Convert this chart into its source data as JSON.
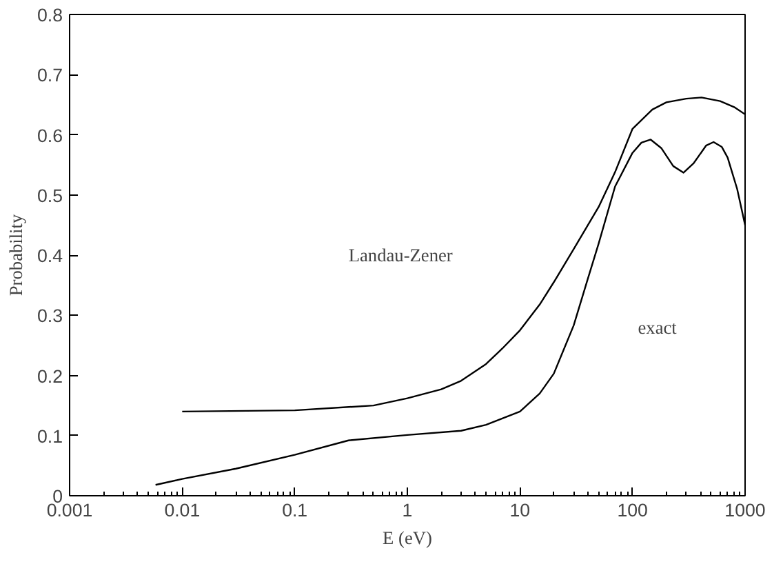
{
  "chart_data": {
    "type": "line",
    "xlabel": "E (eV)",
    "ylabel": "Probability",
    "log": "x",
    "grid": false,
    "marker": "none",
    "line_style": "solid",
    "xlim": [
      0.001,
      1000
    ],
    "xticks": [
      0.001,
      0.01,
      0.1,
      1,
      10,
      100,
      1000
    ],
    "ylim": [
      0,
      0.8
    ],
    "yticks": [
      0,
      0.1,
      0.2,
      0.3,
      0.4,
      0.5,
      0.6,
      0.7,
      0.8
    ],
    "series": [
      {
        "color": "#000000",
        "x": [
          0.01,
          0.1,
          0.5,
          1,
          2,
          3,
          5,
          7,
          10,
          15,
          20,
          30,
          50,
          70,
          100,
          150,
          200,
          300,
          410,
          600,
          800,
          1000
        ],
        "values": [
          0.14,
          0.142,
          0.15,
          0.162,
          0.177,
          0.191,
          0.219,
          0.245,
          0.275,
          0.318,
          0.355,
          0.41,
          0.48,
          0.538,
          0.61,
          0.642,
          0.654,
          0.66,
          0.662,
          0.656,
          0.646,
          0.634
        ]
      },
      {
        "color": "#000000",
        "x": [
          0.0058,
          0.01,
          0.03,
          0.1,
          0.3,
          1,
          3,
          5,
          10,
          15,
          20,
          30,
          40,
          50,
          70,
          100,
          120,
          145,
          180,
          230,
          284,
          350,
          450,
          525,
          620,
          700,
          850,
          1000
        ],
        "values": [
          0.018,
          0.028,
          0.045,
          0.068,
          0.092,
          0.101,
          0.108,
          0.118,
          0.14,
          0.17,
          0.203,
          0.283,
          0.36,
          0.419,
          0.514,
          0.57,
          0.587,
          0.592,
          0.578,
          0.548,
          0.537,
          0.553,
          0.582,
          0.588,
          0.58,
          0.562,
          0.51,
          0.45
        ]
      }
    ],
    "annotations": [
      "Landau-Zener",
      "exact"
    ]
  }
}
